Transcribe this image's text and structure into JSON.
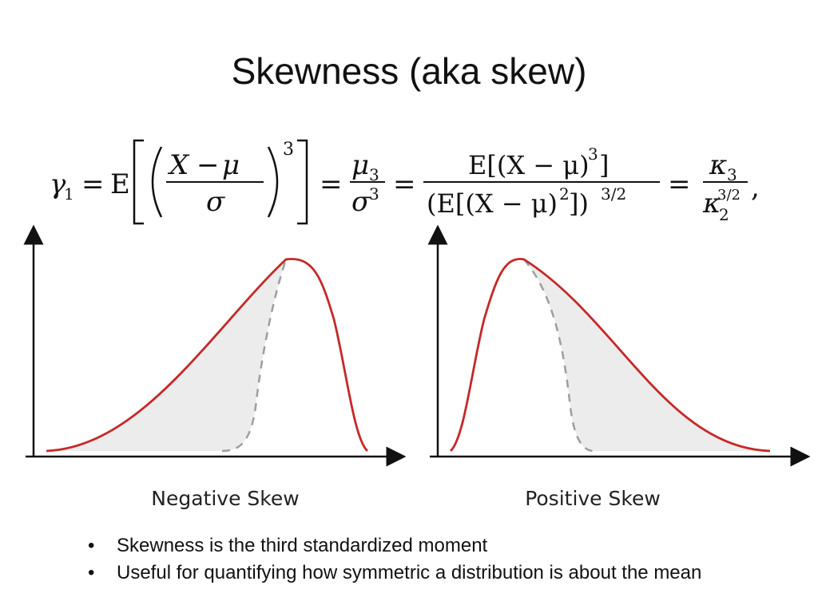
{
  "slide": {
    "title": "Skewness (aka skew)"
  },
  "formula": {
    "lhs": "γ1 = E[((X − μ)/σ)^3] = μ3/σ^3 = E[(X − μ)^3] / (E[(X − μ)^2])^(3/2) = κ3/κ2^(3/2),"
  },
  "diagrams": [
    {
      "caption": "Negative Skew"
    },
    {
      "caption": "Positive Skew"
    }
  ],
  "bullets": [
    "Skewness is the third standardized moment",
    "Useful for quantifying how symmetric a distribution is about the mean"
  ],
  "colors": {
    "curve": "#c62828",
    "fill": "#ececec",
    "dashed": "#9e9e9e"
  }
}
